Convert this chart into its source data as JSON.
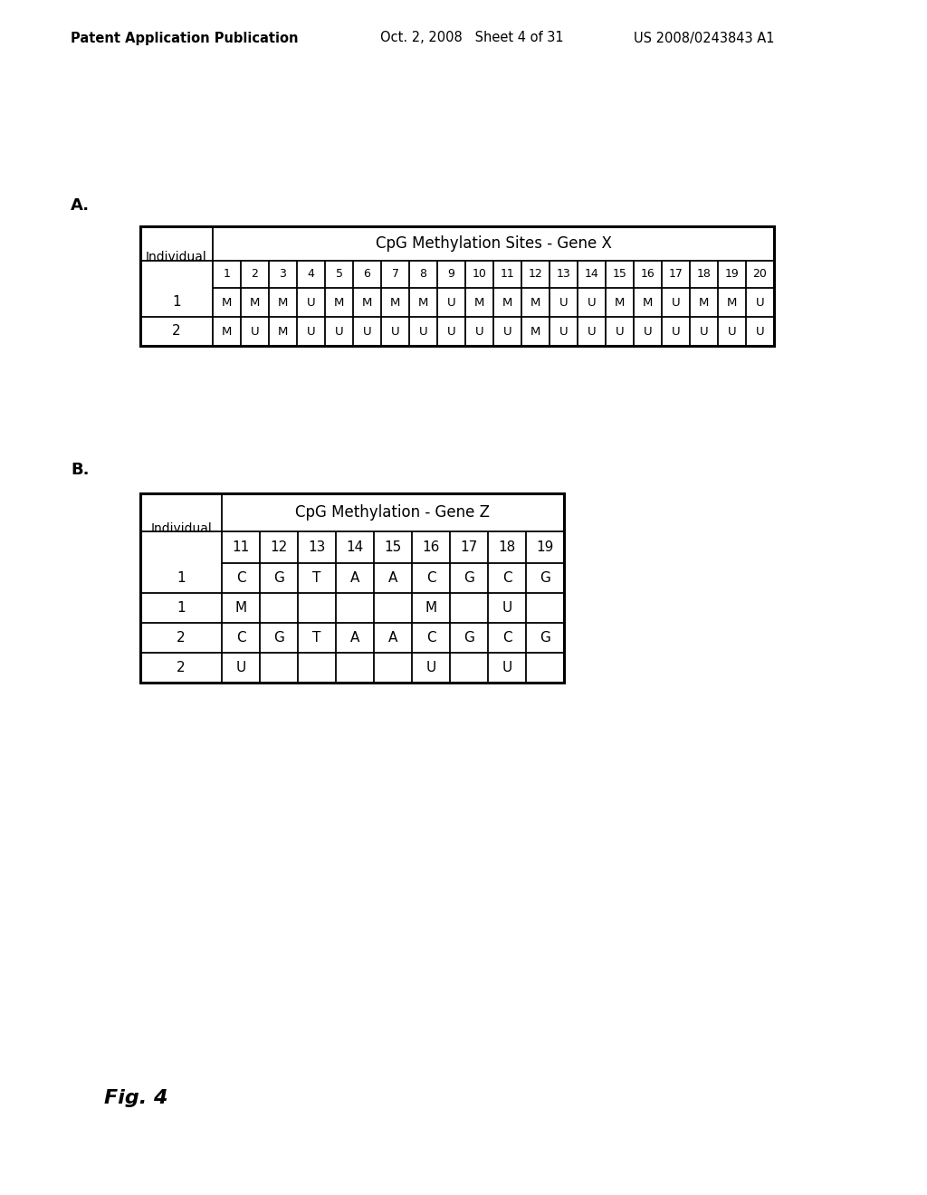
{
  "header_left": "Patent Application Publication",
  "header_mid": "Oct. 2, 2008   Sheet 4 of 31",
  "header_right": "US 2008/0243843 A1",
  "label_A": "A.",
  "label_B": "B.",
  "fig_label": "Fig. 4",
  "table_A": {
    "title": "CpG Methylation Sites - Gene X",
    "col_header": [
      "1",
      "2",
      "3",
      "4",
      "5",
      "6",
      "7",
      "8",
      "9",
      "10",
      "11",
      "12",
      "13",
      "14",
      "15",
      "16",
      "17",
      "18",
      "19",
      "20"
    ],
    "rows": [
      [
        "1",
        "M",
        "M",
        "M",
        "U",
        "M",
        "M",
        "M",
        "M",
        "U",
        "M",
        "M",
        "M",
        "U",
        "U",
        "M",
        "M",
        "U",
        "M",
        "M",
        "U"
      ],
      [
        "2",
        "M",
        "U",
        "M",
        "U",
        "U",
        "U",
        "U",
        "U",
        "U",
        "U",
        "U",
        "M",
        "U",
        "U",
        "U",
        "U",
        "U",
        "U",
        "U",
        "U"
      ]
    ]
  },
  "table_B": {
    "title": "CpG Methylation - Gene Z",
    "col_header": [
      "11",
      "12",
      "13",
      "14",
      "15",
      "16",
      "17",
      "18",
      "19"
    ],
    "rows": [
      [
        "1",
        "C",
        "G",
        "T",
        "A",
        "A",
        "C",
        "G",
        "C",
        "G"
      ],
      [
        "1",
        "M",
        "",
        "",
        "",
        "",
        "M",
        "",
        "U",
        ""
      ],
      [
        "2",
        "C",
        "G",
        "T",
        "A",
        "A",
        "C",
        "G",
        "C",
        "G"
      ],
      [
        "2",
        "U",
        "",
        "",
        "",
        "",
        "U",
        "",
        "U",
        ""
      ]
    ]
  },
  "bg_color": "#ffffff",
  "text_color": "#000000"
}
